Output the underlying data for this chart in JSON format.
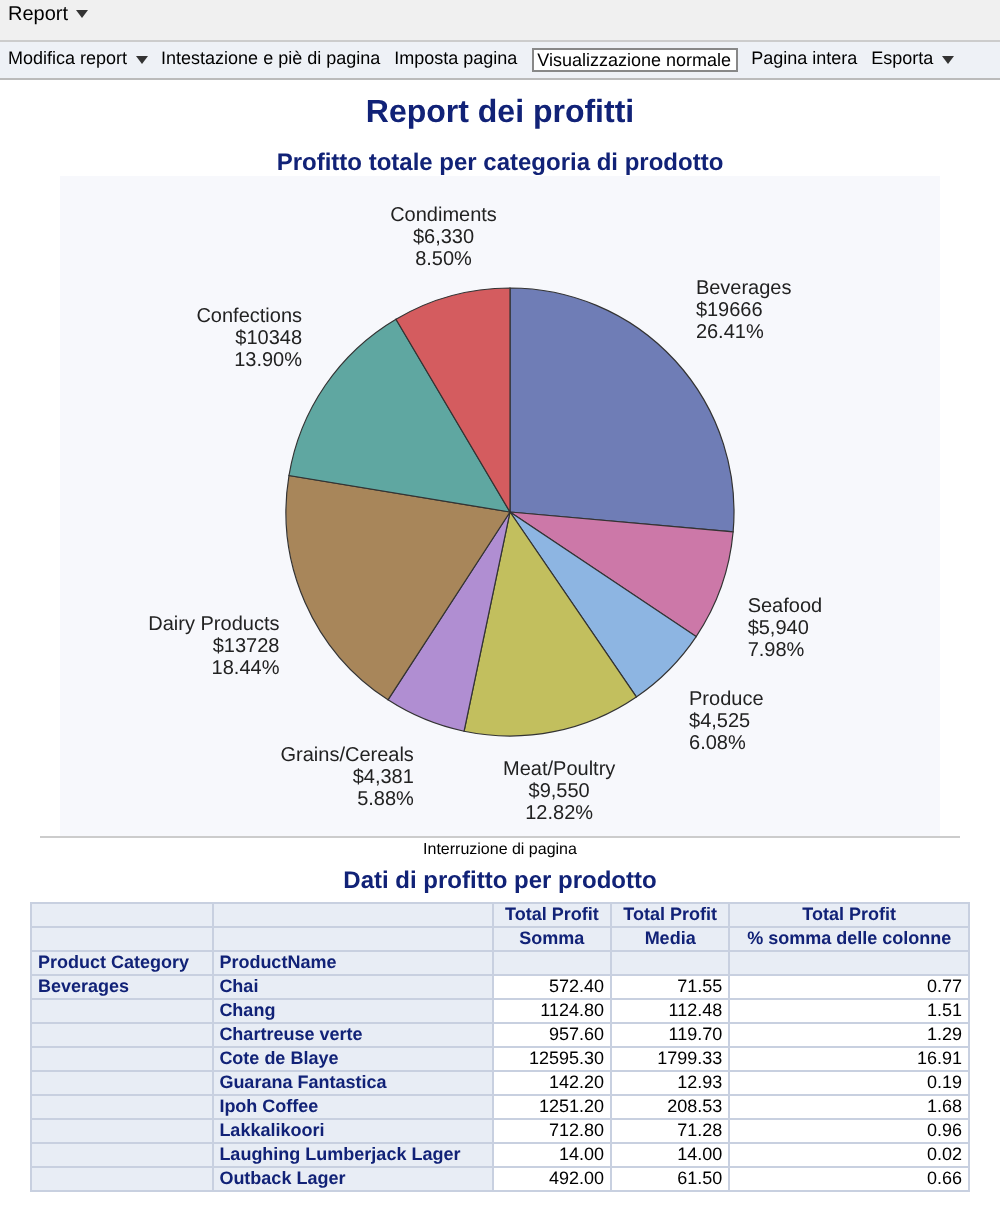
{
  "chart_data": [
    {
      "type": "pie",
      "title": "Report dei profitti",
      "subtitle": "Profitto totale per categoria di prodotto",
      "categories": [
        "Beverages",
        "Seafood",
        "Produce",
        "Meat/Poultry",
        "Grains/Cereals",
        "Dairy Products",
        "Confections",
        "Condiments"
      ],
      "values": [
        19666,
        5940,
        4525,
        9550,
        4381,
        13728,
        10348,
        6330
      ],
      "value_labels": [
        "$19666\n26.41%",
        "$5,940\n7.98%",
        "$4,525\n6.08%",
        "$9,550\n12.82%",
        "$4,381\n5.88%",
        "$13728\n18.44%",
        "$10348\n13.90%",
        "$6,330\n8.50%"
      ],
      "colors": [
        "#6f7db6",
        "#cc78a8",
        "#8db5e2",
        "#c2bf5e",
        "#b08ed2",
        "#a8865a",
        "#5fa7a1",
        "#d45c5f"
      ],
      "annotations": [
        "Report",
        "Modifica report",
        "Intestazione e piè di pagina",
        "Imposta pagina",
        "Visualizzazione normale",
        "Pagina intera",
        "Esporta",
        "Interruzione di pagina"
      ]
    },
    {
      "type": "other",
      "title": "Dati di profitto per prodotto",
      "categories": [
        "Chai",
        "Chang",
        "Chartreuse verte",
        "Cote de Blaye",
        "Guarana Fantastica",
        "Ipoh Coffee",
        "Lakkalikoori",
        "Laughing Lumberjack Lager",
        "Outback Lager"
      ],
      "series": [
        {
          "name": "Somma",
          "values": [
            572.4,
            1124.8,
            957.6,
            12595.3,
            142.2,
            1251.2,
            712.8,
            14,
            492
          ],
          "value_labels": [
            "572.40",
            "1124.80",
            "957.60",
            "12595.30",
            "142.20",
            "1251.20",
            "712.80",
            "14.00",
            "492.00"
          ]
        },
        {
          "name": "Media",
          "values": [
            71.55,
            112.48,
            119.7,
            1799.33,
            12.93,
            208.53,
            71.28,
            14,
            61.5
          ],
          "value_labels": [
            "71.55",
            "112.48",
            "119.70",
            "1799.33",
            "12.93",
            "208.53",
            "71.28",
            "14.00",
            "61.50"
          ]
        },
        {
          "name": "% somma delle colonne",
          "values": [
            0.77,
            1.51,
            1.29,
            16.91,
            0.19,
            1.68,
            0.96,
            0.02,
            0.66
          ],
          "value_labels": [
            "0.77",
            "1.51",
            "1.29",
            "16.91",
            "0.19",
            "1.68",
            "0.96",
            "0.02",
            "0.66"
          ]
        }
      ],
      "annotations": [
        "Total Profit",
        "Total Profit",
        "Total Profit",
        "Product Category",
        "ProductName",
        "Beverages"
      ]
    }
  ]
}
